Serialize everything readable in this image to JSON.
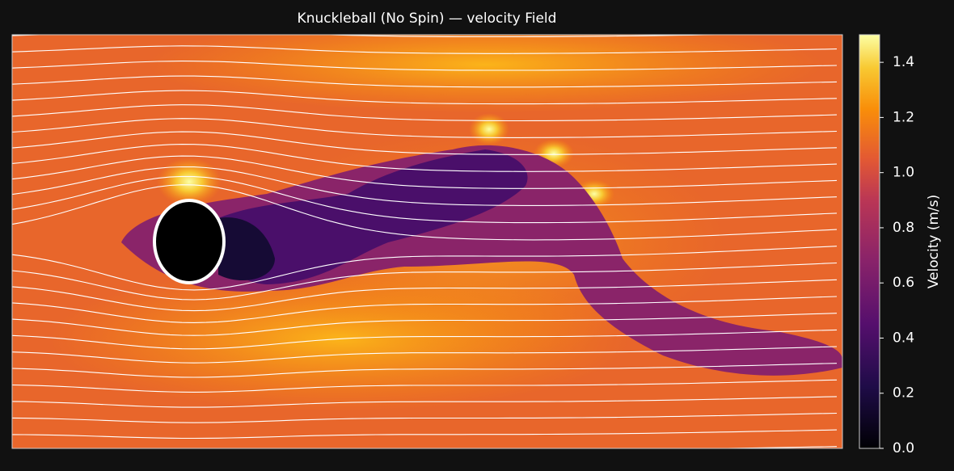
{
  "chart_data": {
    "type": "field",
    "title": "Knuckleball (No Spin) — velocity Field",
    "colorbar_label": "Velocity (m/s)",
    "colormap": "inferno",
    "clim": [
      0,
      1.5
    ],
    "cticks": [
      {
        "value": 0,
        "label": "0.0"
      },
      0.2,
      0.4,
      0.6,
      0.8,
      {
        "value": 1,
        "label": "1.0"
      },
      1.2,
      1.4
    ]
  }
}
